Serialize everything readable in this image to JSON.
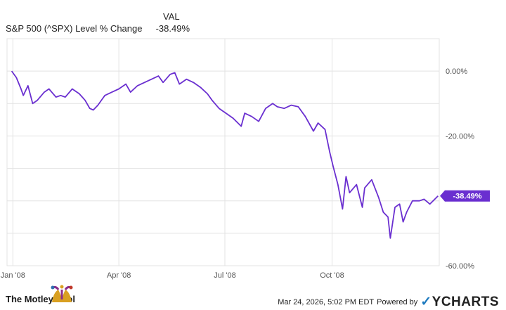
{
  "legend": {
    "header": "VAL",
    "series_name": "S&P 500 (^SPX) Level % Change",
    "series_value": "-38.49%"
  },
  "footer": {
    "brand": "The Motley Fool",
    "timestamp": "Mar 24, 2026, 5:02 PM EDT",
    "powered_by": "Powered by",
    "provider": "YCHARTS"
  },
  "colors": {
    "line": "#6a2fd0",
    "grid": "#e3e3e3",
    "label_bg": "#6a2fd0"
  },
  "chart_data": {
    "type": "line",
    "ylim": [
      -60,
      10
    ],
    "y_ticks": [
      {
        "value": 0,
        "label": "0.00%"
      },
      {
        "value": -20,
        "label": "-20.00%"
      },
      {
        "value": -60,
        "label": "-60.00%"
      }
    ],
    "x_ticks": [
      {
        "value": "2008-01",
        "label": "Jan '08"
      },
      {
        "value": "2008-04",
        "label": "Apr '08"
      },
      {
        "value": "2008-07",
        "label": "Jul '08"
      },
      {
        "value": "2008-10",
        "label": "Oct '08"
      }
    ],
    "end_label": "-38.49%",
    "series": [
      {
        "name": "S&P 500 (^SPX) Level % Change",
        "x": [
          "2007-12-31",
          "2008-01-04",
          "2008-01-08",
          "2008-01-10",
          "2008-01-14",
          "2008-01-18",
          "2008-01-22",
          "2008-01-28",
          "2008-02-01",
          "2008-02-07",
          "2008-02-11",
          "2008-02-15",
          "2008-02-21",
          "2008-02-27",
          "2008-03-03",
          "2008-03-07",
          "2008-03-10",
          "2008-03-14",
          "2008-03-18",
          "2008-03-20",
          "2008-03-26",
          "2008-04-01",
          "2008-04-07",
          "2008-04-11",
          "2008-04-17",
          "2008-04-23",
          "2008-04-29",
          "2008-05-05",
          "2008-05-09",
          "2008-05-15",
          "2008-05-19",
          "2008-05-23",
          "2008-05-29",
          "2008-06-04",
          "2008-06-10",
          "2008-06-16",
          "2008-06-20",
          "2008-06-26",
          "2008-07-02",
          "2008-07-08",
          "2008-07-15",
          "2008-07-18",
          "2008-07-24",
          "2008-07-30",
          "2008-08-05",
          "2008-08-11",
          "2008-08-15",
          "2008-08-21",
          "2008-08-27",
          "2008-09-02",
          "2008-09-08",
          "2008-09-15",
          "2008-09-19",
          "2008-09-25",
          "2008-09-29",
          "2008-10-02",
          "2008-10-06",
          "2008-10-10",
          "2008-10-13",
          "2008-10-16",
          "2008-10-22",
          "2008-10-27",
          "2008-10-29",
          "2008-11-04",
          "2008-11-10",
          "2008-11-14",
          "2008-11-18",
          "2008-11-20",
          "2008-11-24",
          "2008-11-28",
          "2008-12-01",
          "2008-12-04",
          "2008-12-09",
          "2008-12-15",
          "2008-12-19",
          "2008-12-24",
          "2008-12-31"
        ],
        "y": [
          0.0,
          -2.0,
          -5.5,
          -7.5,
          -4.5,
          -10.0,
          -9.0,
          -6.5,
          -5.5,
          -8.0,
          -7.5,
          -8.0,
          -5.5,
          -7.0,
          -9.0,
          -11.5,
          -12.0,
          -10.5,
          -8.5,
          -7.5,
          -6.5,
          -5.5,
          -4.0,
          -6.5,
          -4.5,
          -3.5,
          -2.5,
          -1.5,
          -3.5,
          -1.0,
          -0.5,
          -4.0,
          -2.5,
          -3.5,
          -5.0,
          -7.0,
          -9.0,
          -11.5,
          -13.0,
          -14.5,
          -17.0,
          -13.0,
          -14.0,
          -15.5,
          -11.5,
          -10.0,
          -11.0,
          -11.5,
          -10.5,
          -11.0,
          -14.0,
          -18.5,
          -16.0,
          -18.0,
          -25.0,
          -29.5,
          -35.0,
          -42.5,
          -32.5,
          -37.5,
          -35.0,
          -42.0,
          -36.0,
          -33.5,
          -39.0,
          -43.5,
          -45.0,
          -51.5,
          -42.0,
          -41.0,
          -46.5,
          -43.5,
          -40.0,
          -40.0,
          -39.5,
          -41.0,
          -38.49
        ]
      }
    ]
  }
}
